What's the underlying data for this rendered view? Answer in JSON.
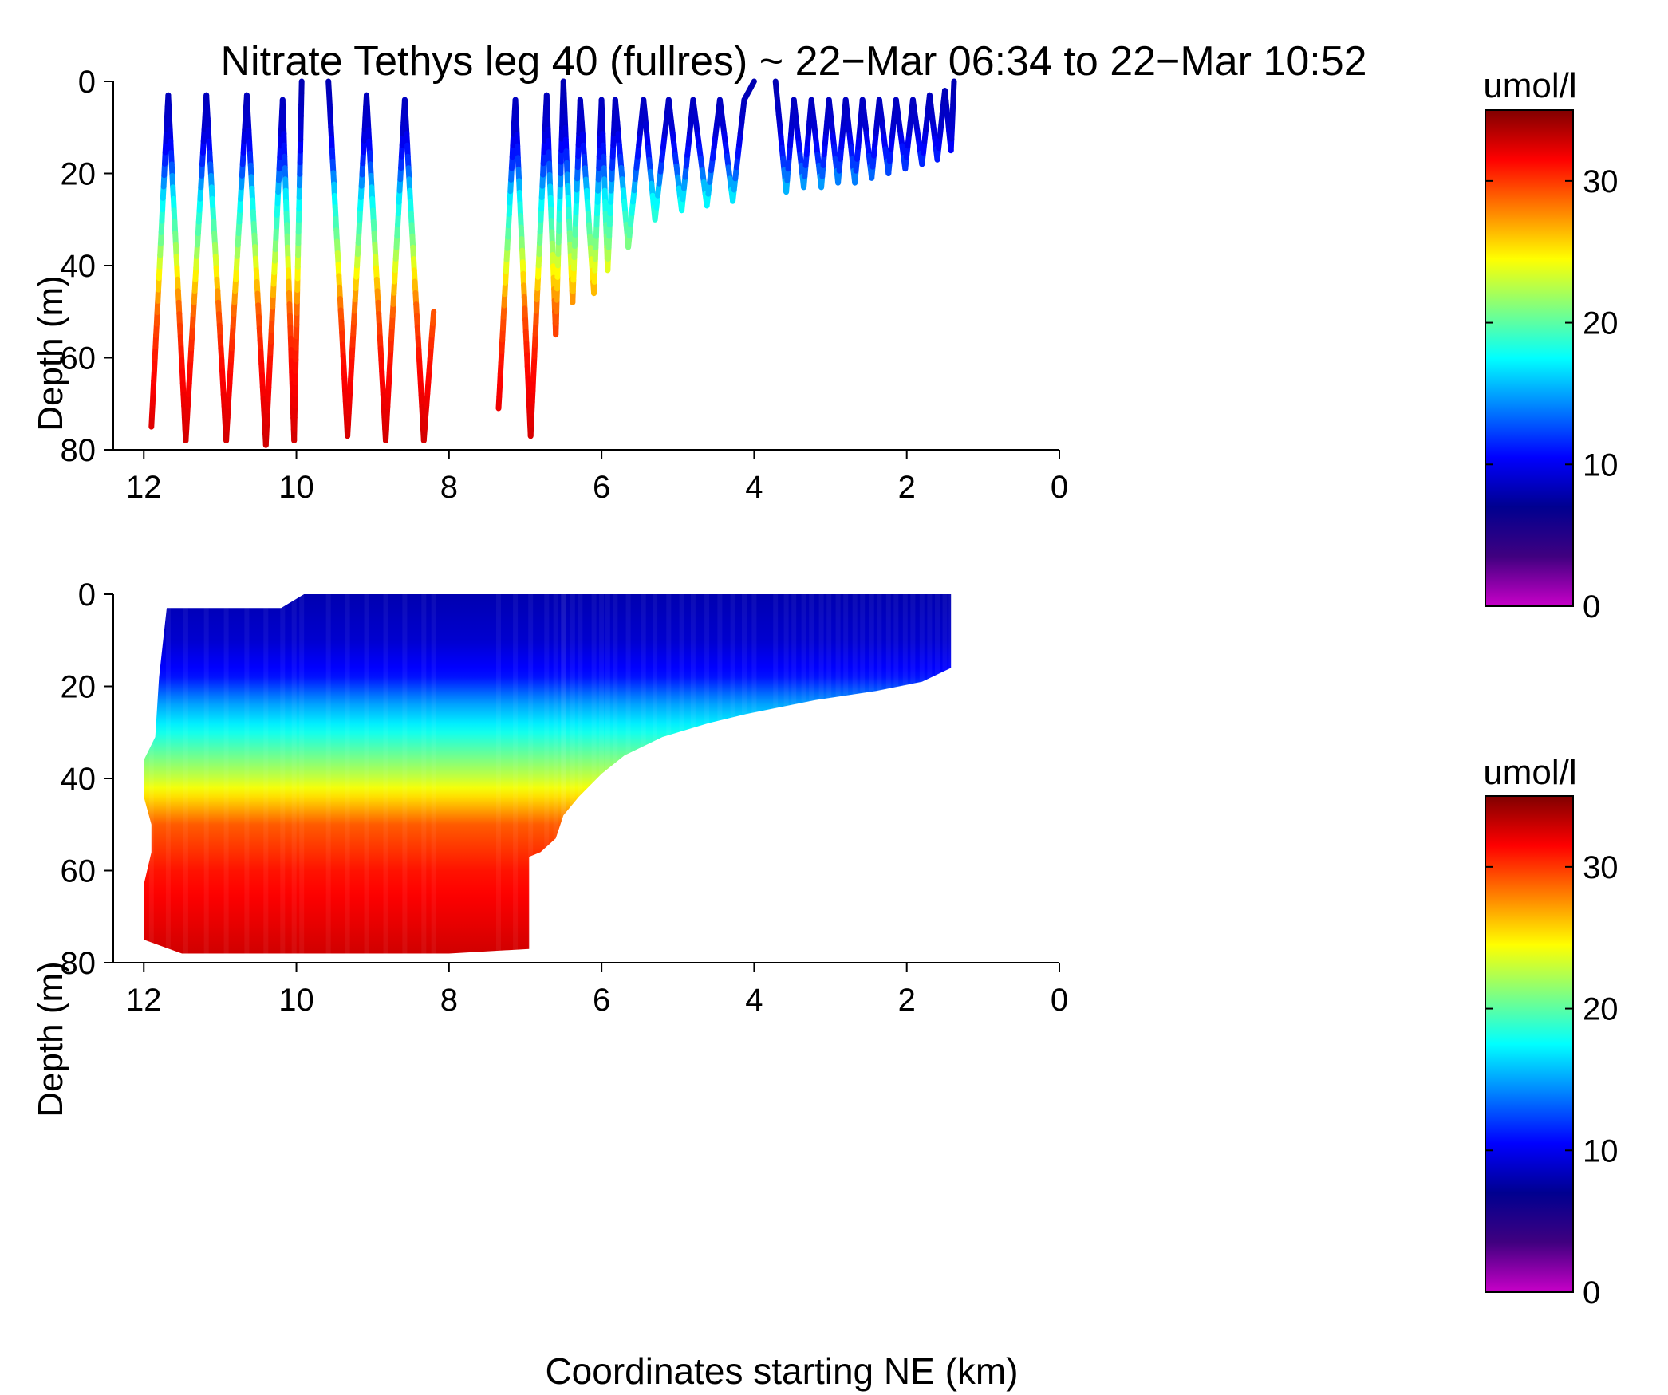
{
  "colorbar": {
    "label": "umol/l",
    "range": [
      0,
      35
    ],
    "ticks": [
      "0",
      "10",
      "20",
      "30"
    ],
    "tick_values": [
      0,
      10,
      20,
      30
    ],
    "colormap_hex": [
      "#c800c8",
      "#400080",
      "#000090",
      "#0000ff",
      "#0080ff",
      "#00ffff",
      "#80ff80",
      "#ffff00",
      "#ff8000",
      "#ff0000",
      "#800000"
    ]
  },
  "chart_data": [
    {
      "type": "scatter",
      "title": "Nitrate Tethys leg 40 (fullres) ~ 22−Mar 06:34 to 22−Mar 10:52",
      "xlabel": "",
      "ylabel": "Depth (m)",
      "xlim": [
        12.4,
        0
      ],
      "ylim": [
        80,
        0
      ],
      "xticks": [
        "12",
        "10",
        "8",
        "6",
        "4",
        "2",
        "0"
      ],
      "xtick_values": [
        12,
        10,
        8,
        6,
        4,
        2,
        0
      ],
      "yticks": [
        "0",
        "20",
        "40",
        "60",
        "80"
      ],
      "ytick_values": [
        0,
        20,
        40,
        60,
        80
      ],
      "yo_turns": [
        [
          [
            11.9,
            75
          ],
          [
            11.68,
            3
          ],
          [
            11.45,
            78
          ],
          [
            11.18,
            3
          ],
          [
            10.92,
            78
          ],
          [
            10.65,
            3
          ],
          [
            10.4,
            79
          ],
          [
            10.18,
            4
          ],
          [
            10.03,
            78
          ],
          [
            9.93,
            0
          ]
        ],
        [
          [
            9.58,
            0
          ],
          [
            9.33,
            77
          ],
          [
            9.08,
            3
          ],
          [
            8.83,
            78
          ],
          [
            8.58,
            4
          ],
          [
            8.33,
            78
          ],
          [
            8.2,
            50
          ]
        ],
        [
          [
            7.35,
            71
          ],
          [
            7.13,
            4
          ],
          [
            6.93,
            77
          ],
          [
            6.72,
            3
          ],
          [
            6.6,
            55
          ],
          [
            6.5,
            0
          ]
        ],
        [
          [
            6.5,
            0
          ],
          [
            6.38,
            48
          ],
          [
            6.28,
            4
          ],
          [
            6.1,
            46
          ],
          [
            6.0,
            4
          ],
          [
            5.92,
            41
          ],
          [
            5.82,
            4
          ],
          [
            5.65,
            36
          ],
          [
            5.45,
            4
          ],
          [
            5.3,
            30
          ],
          [
            5.12,
            4
          ],
          [
            4.95,
            28
          ],
          [
            4.8,
            4
          ],
          [
            4.62,
            27
          ],
          [
            4.45,
            4
          ],
          [
            4.28,
            26
          ],
          [
            4.13,
            4
          ],
          [
            4.0,
            0
          ]
        ],
        [
          [
            3.72,
            0
          ],
          [
            3.58,
            24
          ],
          [
            3.48,
            4
          ],
          [
            3.35,
            23
          ],
          [
            3.25,
            4
          ],
          [
            3.12,
            23
          ],
          [
            3.02,
            4
          ],
          [
            2.9,
            22
          ],
          [
            2.8,
            4
          ],
          [
            2.68,
            22
          ],
          [
            2.58,
            4
          ],
          [
            2.46,
            21
          ],
          [
            2.36,
            4
          ],
          [
            2.24,
            20
          ],
          [
            2.14,
            4
          ],
          [
            2.02,
            19
          ],
          [
            1.92,
            4
          ],
          [
            1.8,
            18
          ],
          [
            1.7,
            3
          ],
          [
            1.6,
            17
          ],
          [
            1.5,
            2
          ],
          [
            1.42,
            15
          ],
          [
            1.38,
            0
          ]
        ]
      ],
      "color_variable": "nitrate (umol/l)",
      "nitrate_profile_by_depth": [
        [
          0,
          8
        ],
        [
          10,
          9
        ],
        [
          18,
          12
        ],
        [
          25,
          17
        ],
        [
          35,
          21
        ],
        [
          42,
          25
        ],
        [
          50,
          29
        ],
        [
          60,
          31
        ],
        [
          70,
          32
        ],
        [
          80,
          33
        ]
      ]
    },
    {
      "type": "heatmap",
      "title": "",
      "xlabel": "Coordinates starting NE (km)",
      "ylabel": "Depth (m)",
      "xlim": [
        12.4,
        0
      ],
      "ylim": [
        80,
        0
      ],
      "xticks": [
        "12",
        "10",
        "8",
        "6",
        "4",
        "2",
        "0"
      ],
      "xtick_values": [
        12,
        10,
        8,
        6,
        4,
        2,
        0
      ],
      "yticks": [
        "0",
        "20",
        "40",
        "60",
        "80"
      ],
      "ytick_values": [
        0,
        20,
        40,
        60,
        80
      ],
      "coverage_polygon_km_m": [
        [
          9.9,
          0
        ],
        [
          1.42,
          0
        ],
        [
          1.42,
          16
        ],
        [
          1.8,
          19
        ],
        [
          2.4,
          21
        ],
        [
          3.2,
          23
        ],
        [
          4.1,
          26
        ],
        [
          4.6,
          28
        ],
        [
          5.2,
          31
        ],
        [
          5.7,
          35
        ],
        [
          6.0,
          39
        ],
        [
          6.3,
          44
        ],
        [
          6.5,
          48
        ],
        [
          6.6,
          53
        ],
        [
          6.8,
          56
        ],
        [
          6.95,
          57
        ],
        [
          6.95,
          77
        ],
        [
          8.0,
          78
        ],
        [
          9.0,
          78
        ],
        [
          10.0,
          78
        ],
        [
          11.5,
          78
        ],
        [
          12.0,
          75
        ],
        [
          12.0,
          63
        ],
        [
          11.9,
          56
        ],
        [
          11.9,
          50
        ],
        [
          12.0,
          44
        ],
        [
          12.0,
          36
        ],
        [
          11.85,
          31
        ],
        [
          11.8,
          18
        ],
        [
          11.7,
          3
        ],
        [
          10.2,
          3
        ],
        [
          9.9,
          0
        ]
      ],
      "depth_profile": [
        [
          0,
          8
        ],
        [
          10,
          9
        ],
        [
          18,
          11
        ],
        [
          24,
          15
        ],
        [
          32,
          19
        ],
        [
          40,
          23
        ],
        [
          45,
          26
        ],
        [
          50,
          29
        ],
        [
          60,
          31
        ],
        [
          70,
          32
        ],
        [
          80,
          33
        ]
      ]
    }
  ]
}
